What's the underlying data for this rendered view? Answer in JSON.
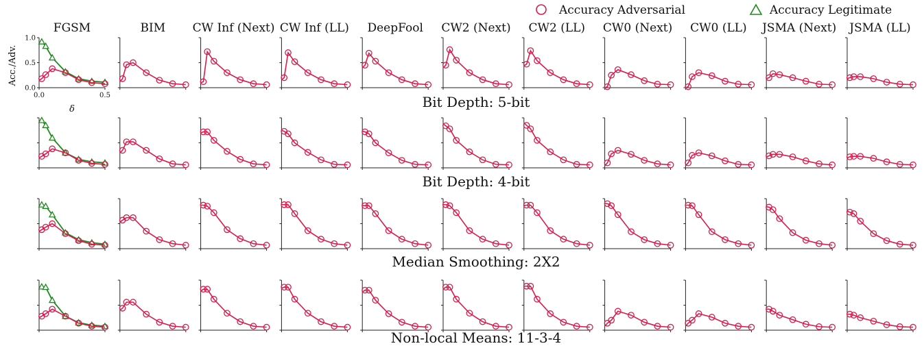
{
  "legend": {
    "adversarial_label": "Accuracy Adversarial",
    "legitimate_label": "Accuracy Legitimate"
  },
  "colors": {
    "adversarial": "#d81b4a",
    "legitimate": "#1e8a1e",
    "axis": "#222222"
  },
  "chart_data": {
    "type": "line",
    "x": [
      0.0,
      0.02,
      0.05,
      0.1,
      0.2,
      0.3,
      0.4,
      0.5
    ],
    "xlim": [
      0,
      0.5
    ],
    "ylim": [
      0,
      1.0
    ],
    "xticks": [
      "0.0",
      "0.5"
    ],
    "yticks": [
      "0.0",
      "0.5",
      "1.0"
    ],
    "xlabel": "δ",
    "ylabel": "Acc./Adv.",
    "markers": {
      "adversarial": "circle",
      "legitimate": "triangle"
    },
    "columns": [
      "FGSM",
      "BIM",
      "CW Inf (Next)",
      "CW Inf (LL)",
      "DeepFool",
      "CW2 (Next)",
      "CW2 (LL)",
      "CW0 (Next)",
      "CW0 (LL)",
      "JSMA (Next)",
      "JSMA (LL)"
    ],
    "rows": [
      {
        "label": "Bit Depth: 5-bit",
        "legitimate": [
          null,
          0.92,
          0.83,
          0.6,
          0.32,
          0.18,
          0.13,
          0.11
        ],
        "adversarial": [
          [
            0.15,
            0.18,
            0.26,
            0.38,
            0.3,
            0.16,
            0.1,
            0.08
          ],
          [
            0.12,
            0.18,
            0.46,
            0.5,
            0.3,
            0.15,
            0.08,
            0.06
          ],
          [
            0.1,
            0.12,
            0.72,
            0.53,
            0.3,
            0.16,
            0.08,
            0.06
          ],
          [
            0.16,
            0.2,
            0.7,
            0.52,
            0.3,
            0.16,
            0.08,
            0.06
          ],
          [
            0.4,
            0.45,
            0.69,
            0.53,
            0.3,
            0.16,
            0.08,
            0.06
          ],
          [
            0.4,
            0.45,
            0.76,
            0.55,
            0.3,
            0.16,
            0.08,
            0.06
          ],
          [
            0.44,
            0.47,
            0.74,
            0.54,
            0.3,
            0.16,
            0.08,
            0.06
          ],
          [
            0.0,
            0.02,
            0.25,
            0.36,
            0.26,
            0.14,
            0.07,
            0.06
          ],
          [
            0.0,
            0.02,
            0.22,
            0.3,
            0.24,
            0.13,
            0.07,
            0.06
          ],
          [
            0.18,
            0.2,
            0.28,
            0.26,
            0.2,
            0.13,
            0.07,
            0.06
          ],
          [
            0.18,
            0.2,
            0.22,
            0.22,
            0.18,
            0.11,
            0.07,
            0.06
          ]
        ]
      },
      {
        "label": "Bit Depth: 4-bit",
        "legitimate": [
          null,
          0.95,
          0.85,
          0.6,
          0.3,
          0.17,
          0.12,
          0.1
        ],
        "adversarial": [
          [
            0.2,
            0.23,
            0.28,
            0.38,
            0.3,
            0.15,
            0.09,
            0.07
          ],
          [
            0.3,
            0.35,
            0.52,
            0.52,
            0.35,
            0.18,
            0.08,
            0.06
          ],
          [
            0.7,
            0.72,
            0.72,
            0.55,
            0.33,
            0.17,
            0.08,
            0.06
          ],
          [
            0.75,
            0.73,
            0.68,
            0.5,
            0.31,
            0.16,
            0.07,
            0.06
          ],
          [
            0.73,
            0.72,
            0.68,
            0.5,
            0.3,
            0.15,
            0.07,
            0.06
          ],
          [
            0.88,
            0.84,
            0.78,
            0.55,
            0.32,
            0.16,
            0.07,
            0.06
          ],
          [
            0.9,
            0.85,
            0.78,
            0.55,
            0.32,
            0.16,
            0.07,
            0.06
          ],
          [
            0.04,
            0.1,
            0.28,
            0.35,
            0.27,
            0.15,
            0.08,
            0.06
          ],
          [
            0.04,
            0.1,
            0.25,
            0.3,
            0.24,
            0.14,
            0.07,
            0.06
          ],
          [
            0.22,
            0.24,
            0.27,
            0.27,
            0.22,
            0.14,
            0.08,
            0.06
          ],
          [
            0.2,
            0.22,
            0.23,
            0.23,
            0.19,
            0.12,
            0.07,
            0.06
          ]
        ]
      },
      {
        "label": "Median Smoothing: 2X2",
        "legitimate": [
          null,
          0.88,
          0.85,
          0.68,
          0.32,
          0.18,
          0.12,
          0.09
        ],
        "adversarial": [
          [
            0.35,
            0.38,
            0.43,
            0.5,
            0.3,
            0.16,
            0.09,
            0.07
          ],
          [
            0.53,
            0.57,
            0.62,
            0.62,
            0.35,
            0.18,
            0.1,
            0.07
          ],
          [
            0.87,
            0.87,
            0.85,
            0.72,
            0.38,
            0.2,
            0.1,
            0.07
          ],
          [
            0.88,
            0.88,
            0.88,
            0.7,
            0.36,
            0.19,
            0.1,
            0.07
          ],
          [
            0.86,
            0.86,
            0.86,
            0.7,
            0.36,
            0.19,
            0.1,
            0.07
          ],
          [
            0.88,
            0.88,
            0.86,
            0.72,
            0.36,
            0.19,
            0.1,
            0.07
          ],
          [
            0.86,
            0.87,
            0.87,
            0.72,
            0.36,
            0.19,
            0.1,
            0.07
          ],
          [
            0.9,
            0.9,
            0.86,
            0.68,
            0.34,
            0.18,
            0.1,
            0.07
          ],
          [
            0.87,
            0.87,
            0.86,
            0.68,
            0.34,
            0.18,
            0.1,
            0.07
          ],
          [
            0.84,
            0.83,
            0.78,
            0.6,
            0.32,
            0.17,
            0.1,
            0.07
          ],
          [
            0.75,
            0.73,
            0.7,
            0.55,
            0.3,
            0.16,
            0.09,
            0.07
          ]
        ]
      },
      {
        "label": "Non-local Means: 11-3-4",
        "legitimate": [
          null,
          0.87,
          0.86,
          0.6,
          0.28,
          0.15,
          0.1,
          0.08
        ],
        "adversarial": [
          [
            0.25,
            0.28,
            0.33,
            0.42,
            0.28,
            0.14,
            0.08,
            0.06
          ],
          [
            0.4,
            0.44,
            0.56,
            0.56,
            0.32,
            0.16,
            0.08,
            0.06
          ],
          [
            0.78,
            0.82,
            0.82,
            0.62,
            0.34,
            0.17,
            0.08,
            0.06
          ],
          [
            0.84,
            0.86,
            0.86,
            0.62,
            0.34,
            0.17,
            0.08,
            0.06
          ],
          [
            0.76,
            0.8,
            0.8,
            0.6,
            0.33,
            0.16,
            0.08,
            0.06
          ],
          [
            0.82,
            0.86,
            0.86,
            0.62,
            0.34,
            0.17,
            0.08,
            0.06
          ],
          [
            0.88,
            0.88,
            0.88,
            0.62,
            0.33,
            0.16,
            0.08,
            0.06
          ],
          [
            0.08,
            0.14,
            0.2,
            0.38,
            0.3,
            0.16,
            0.08,
            0.06
          ],
          [
            0.08,
            0.14,
            0.2,
            0.33,
            0.26,
            0.14,
            0.08,
            0.06
          ],
          [
            0.42,
            0.42,
            0.38,
            0.3,
            0.21,
            0.12,
            0.07,
            0.06
          ],
          [
            0.32,
            0.32,
            0.3,
            0.25,
            0.18,
            0.11,
            0.07,
            0.06
          ]
        ]
      }
    ]
  }
}
